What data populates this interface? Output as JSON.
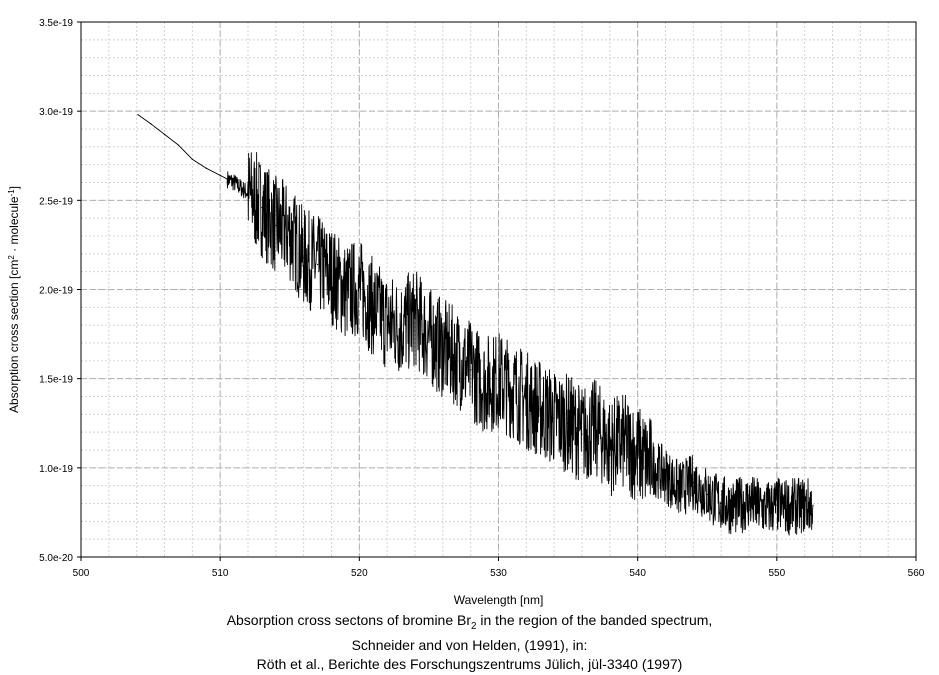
{
  "chart_data": {
    "type": "line",
    "xlabel": "Wavelength [nm]",
    "ylabel_parts": {
      "prefix": "Absorption cross section [cm",
      "sup1": "2",
      "middle": " · molecule",
      "sup2": "-1",
      "suffix": "]"
    },
    "xlim": [
      500,
      560
    ],
    "ylim": [
      5e-20,
      3.5e-19
    ],
    "x_ticks": [
      500,
      510,
      520,
      530,
      540,
      550,
      560
    ],
    "x_tick_labels": [
      "500",
      "510",
      "520",
      "530",
      "540",
      "550",
      "560"
    ],
    "y_ticks": [
      5e-20,
      1e-19,
      1.5e-19,
      2e-19,
      2.5e-19,
      3e-19,
      3.5e-19
    ],
    "y_tick_labels": [
      "5.0e-20",
      "1.0e-19",
      "1.5e-19",
      "2.0e-19",
      "2.5e-19",
      "3.0e-19",
      "3.5e-19"
    ],
    "grid": true,
    "series": [
      {
        "color": "#000000",
        "x": [
          504.1,
          505.0,
          506.0,
          507.0,
          508.0,
          509.0,
          510.0,
          511.0,
          512.0,
          513.0,
          514.0,
          515.0,
          516.0,
          517.0,
          518.0,
          519.0,
          520.0,
          521.0,
          522.0,
          523.0,
          524.0,
          525.0,
          526.0,
          527.0,
          528.0,
          529.0,
          530.0,
          531.0,
          532.0,
          533.0,
          534.0,
          535.0,
          536.0,
          537.0,
          538.0,
          539.0,
          540.0,
          541.0,
          542.0,
          543.0,
          544.0,
          545.0,
          546.0,
          547.0,
          548.0,
          549.0,
          550.0,
          551.0,
          552.0,
          552.6
        ],
        "y": [
          2.98e-19,
          2.93e-19,
          2.87e-19,
          2.81e-19,
          2.73e-19,
          2.68e-19,
          2.64e-19,
          2.6e-19,
          2.54e-19,
          2.46e-19,
          2.36e-19,
          2.32e-19,
          2.18e-19,
          2.14e-19,
          2.08e-19,
          1.99e-19,
          2.01e-19,
          1.9e-19,
          1.82e-19,
          1.79e-19,
          1.84e-19,
          1.74e-19,
          1.67e-19,
          1.62e-19,
          1.55e-19,
          1.47e-19,
          1.49e-19,
          1.44e-19,
          1.38e-19,
          1.33e-19,
          1.28e-19,
          1.25e-19,
          1.19e-19,
          1.22e-19,
          1.12e-19,
          1.14e-19,
          1.08e-19,
          1.01e-19,
          9.6e-20,
          8.8e-20,
          9.2e-20,
          8.5e-20,
          8e-20,
          7.8e-20,
          8.1e-20,
          7.7e-20,
          7.9e-20,
          7.8e-20,
          7.9e-20,
          7.9e-20
        ]
      }
    ],
    "caption": {
      "line1_prefix": "Absorption cross sectons of bromine Br",
      "line1_sub": "2",
      "line1_suffix": " in the  region of the banded spectrum,",
      "line2": "Schneider and von Helden, (1991), in:",
      "line3": "Röth et al., Berichte des Forschungszentrums Jülich, jül-3340 (1997)"
    }
  }
}
